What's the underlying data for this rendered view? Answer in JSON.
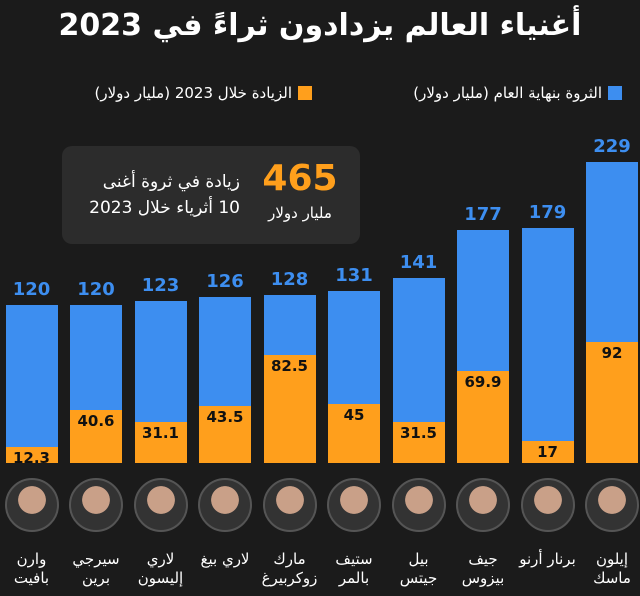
{
  "chart_data": {
    "type": "bar",
    "title": "أغنياء العالم يزدادون ثراءً في 2023",
    "callout": {
      "value": 465,
      "unit": "مليار دولار",
      "line1": "زيادة في ثروة أغنى",
      "line2": "10 أثرياء خلال 2023"
    },
    "categories": [
      "إيلون ماسك",
      "برنار أرنو",
      "جيف بيزوس",
      "بيل جيتس",
      "ستيف بالمر",
      "مارك زوكربيرغ",
      "لاري بيغ",
      "لاري إليسون",
      "سيرجي برين",
      "وارن بافيت"
    ],
    "series": [
      {
        "name": "الثروة بنهاية العام (مليار دولار)",
        "color": "#3d8ef0",
        "values": [
          229,
          179,
          177,
          141,
          131,
          128,
          126,
          123,
          120,
          120
        ]
      },
      {
        "name": "الزيادة خلال 2023 (مليار دولار)",
        "color": "#ff9f1c",
        "values": [
          92,
          17,
          69.9,
          31.5,
          45,
          82.5,
          43.5,
          31.1,
          40.6,
          12.3
        ]
      }
    ]
  }
}
